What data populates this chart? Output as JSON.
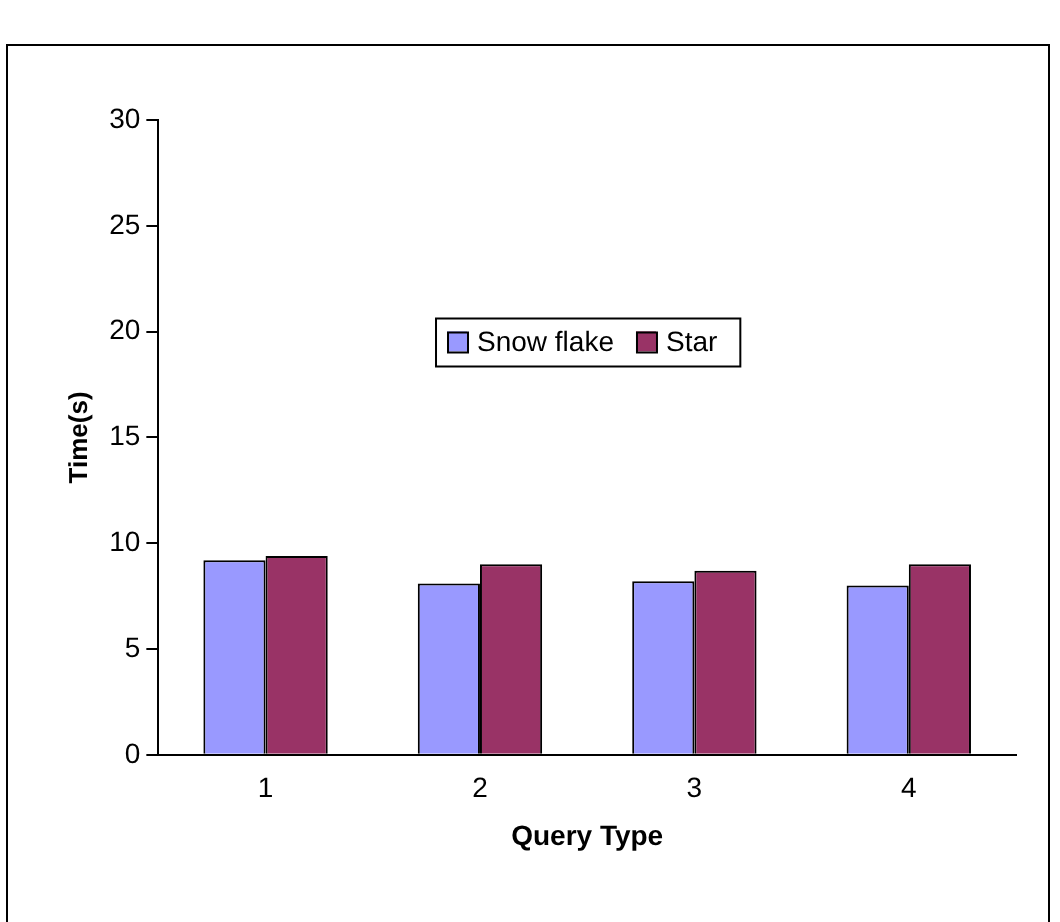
{
  "chart_data": {
    "type": "bar",
    "xlabel": "Query Type",
    "ylabel": "Time(s)",
    "categories": [
      "1",
      "2",
      "3",
      "4"
    ],
    "series": [
      {
        "name": "Snow flake",
        "color": "#9999ff",
        "values": [
          9.2,
          8.1,
          8.2,
          8.0
        ]
      },
      {
        "name": "Star",
        "color": "#993366",
        "values": [
          9.4,
          9.0,
          8.7,
          9.0
        ]
      }
    ],
    "ylim": [
      0,
      30
    ],
    "yticks": [
      0,
      5,
      10,
      15,
      20,
      25,
      30
    ],
    "grid": false,
    "legend": "center"
  }
}
